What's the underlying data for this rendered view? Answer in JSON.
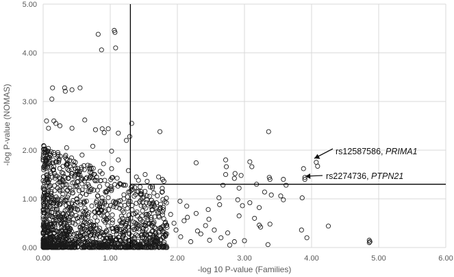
{
  "chart_data": {
    "type": "scatter",
    "xlabel": "-log 10 P-value (Families)",
    "ylabel": "-log P-value (NOMAS)",
    "xlim": [
      0,
      6
    ],
    "ylim": [
      0,
      5
    ],
    "x_ticks": [
      "0.00",
      "1.00",
      "2.00",
      "3.00",
      "4.00",
      "5.00",
      "6.00"
    ],
    "y_ticks": [
      "0.00",
      "1.00",
      "2.00",
      "3.00",
      "4.00",
      "5.00"
    ],
    "grid": true,
    "marker": "open-circle",
    "reference_lines": {
      "vertical_x": 1.3,
      "horizontal_y": 1.3
    },
    "annotations": [
      {
        "snp": "rs12587586, ",
        "gene": "PRIMA1",
        "x": 4.08,
        "y": 1.72
      },
      {
        "snp": "rs2274736, ",
        "gene": "PTPN21",
        "x": 3.9,
        "y": 1.42
      }
    ],
    "points": [
      [
        0.82,
        4.38
      ],
      [
        1.06,
        4.46
      ],
      [
        1.07,
        4.42
      ],
      [
        0.87,
        4.06
      ],
      [
        1.08,
        4.1
      ],
      [
        0.14,
        3.28
      ],
      [
        0.32,
        3.28
      ],
      [
        0.33,
        3.21
      ],
      [
        0.43,
        3.24
      ],
      [
        0.55,
        3.28
      ],
      [
        0.13,
        3.05
      ],
      [
        0.05,
        2.6
      ],
      [
        0.08,
        2.45
      ],
      [
        0.16,
        2.6
      ],
      [
        0.19,
        2.55
      ],
      [
        0.25,
        2.5
      ],
      [
        0.43,
        2.45
      ],
      [
        0.62,
        2.62
      ],
      [
        0.78,
        2.42
      ],
      [
        0.88,
        2.44
      ],
      [
        0.91,
        2.36
      ],
      [
        0.97,
        2.44
      ],
      [
        1.12,
        2.35
      ],
      [
        1.32,
        2.55
      ],
      [
        1.29,
        2.28
      ],
      [
        1.74,
        2.38
      ],
      [
        3.36,
        2.38
      ],
      [
        0.03,
        2.02
      ],
      [
        0.06,
        1.98
      ],
      [
        0.22,
        1.95
      ],
      [
        0.35,
        2.05
      ],
      [
        0.58,
        1.9
      ],
      [
        0.74,
        2.08
      ],
      [
        1.02,
        1.98
      ],
      [
        1.24,
        2.2
      ],
      [
        0.15,
        1.8
      ],
      [
        0.48,
        1.75
      ],
      [
        0.9,
        1.72
      ],
      [
        1.12,
        1.8
      ],
      [
        2.28,
        1.74
      ],
      [
        2.72,
        1.8
      ],
      [
        2.73,
        1.66
      ],
      [
        3.08,
        1.76
      ],
      [
        3.11,
        1.66
      ],
      [
        3.37,
        1.44
      ],
      [
        3.38,
        1.4
      ],
      [
        3.58,
        1.4
      ],
      [
        3.88,
        1.62
      ],
      [
        3.9,
        1.44
      ],
      [
        3.9,
        1.4
      ],
      [
        4.07,
        1.75
      ],
      [
        4.09,
        1.67
      ],
      [
        1.02,
        1.62
      ],
      [
        1.27,
        1.58
      ],
      [
        0.42,
        1.6
      ],
      [
        0.7,
        1.55
      ],
      [
        0.88,
        1.52
      ],
      [
        1.39,
        1.45
      ],
      [
        1.52,
        1.5
      ],
      [
        1.72,
        1.45
      ],
      [
        1.78,
        1.4
      ],
      [
        1.8,
        1.36
      ],
      [
        1.55,
        1.36
      ],
      [
        1.42,
        1.38
      ],
      [
        2.72,
        1.5
      ],
      [
        2.95,
        1.48
      ],
      [
        2.68,
        1.28
      ],
      [
        3.18,
        1.3
      ],
      [
        3.62,
        1.28
      ],
      [
        2.86,
        1.52
      ],
      [
        2.85,
        1.42
      ],
      [
        2.92,
        1.22
      ],
      [
        3.4,
        1.08
      ],
      [
        3.54,
        1.06
      ],
      [
        3.58,
        0.98
      ],
      [
        2.62,
        1.02
      ],
      [
        2.9,
        0.98
      ],
      [
        2.97,
        0.86
      ],
      [
        3.08,
        0.92
      ],
      [
        3.22,
        0.82
      ],
      [
        3.3,
        1.14
      ],
      [
        2.46,
        0.78
      ],
      [
        2.63,
        0.88
      ],
      [
        2.47,
        0.58
      ],
      [
        2.28,
        0.7
      ],
      [
        2.92,
        0.65
      ],
      [
        3.15,
        0.6
      ],
      [
        3.22,
        0.46
      ],
      [
        3.24,
        0.42
      ],
      [
        3.38,
        0.48
      ],
      [
        3.86,
        1.02
      ],
      [
        3.85,
        0.36
      ],
      [
        3.93,
        0.2
      ],
      [
        4.25,
        0.44
      ],
      [
        4.86,
        0.15
      ],
      [
        4.87,
        0.12
      ],
      [
        4.86,
        0.1
      ],
      [
        3.35,
        0.06
      ],
      [
        3.0,
        0.14
      ],
      [
        2.78,
        0.05
      ],
      [
        2.65,
        0.2
      ],
      [
        2.48,
        0.15
      ],
      [
        2.35,
        0.28
      ],
      [
        2.2,
        0.12
      ],
      [
        2.05,
        0.22
      ],
      [
        1.95,
        0.5
      ],
      [
        2.1,
        0.55
      ],
      [
        2.15,
        0.62
      ],
      [
        1.9,
        0.68
      ],
      [
        1.7,
        0.75
      ],
      [
        1.62,
        0.9
      ],
      [
        1.48,
        1.02
      ],
      [
        1.46,
        0.86
      ],
      [
        1.65,
        1.12
      ],
      [
        2.04,
        0.95
      ],
      [
        2.14,
        0.85
      ],
      [
        1.98,
        0.36
      ],
      [
        1.84,
        0.28
      ],
      [
        2.3,
        0.34
      ],
      [
        2.55,
        0.36
      ],
      [
        2.42,
        0.45
      ],
      [
        2.75,
        0.3
      ],
      [
        2.85,
        0.12
      ]
    ]
  }
}
